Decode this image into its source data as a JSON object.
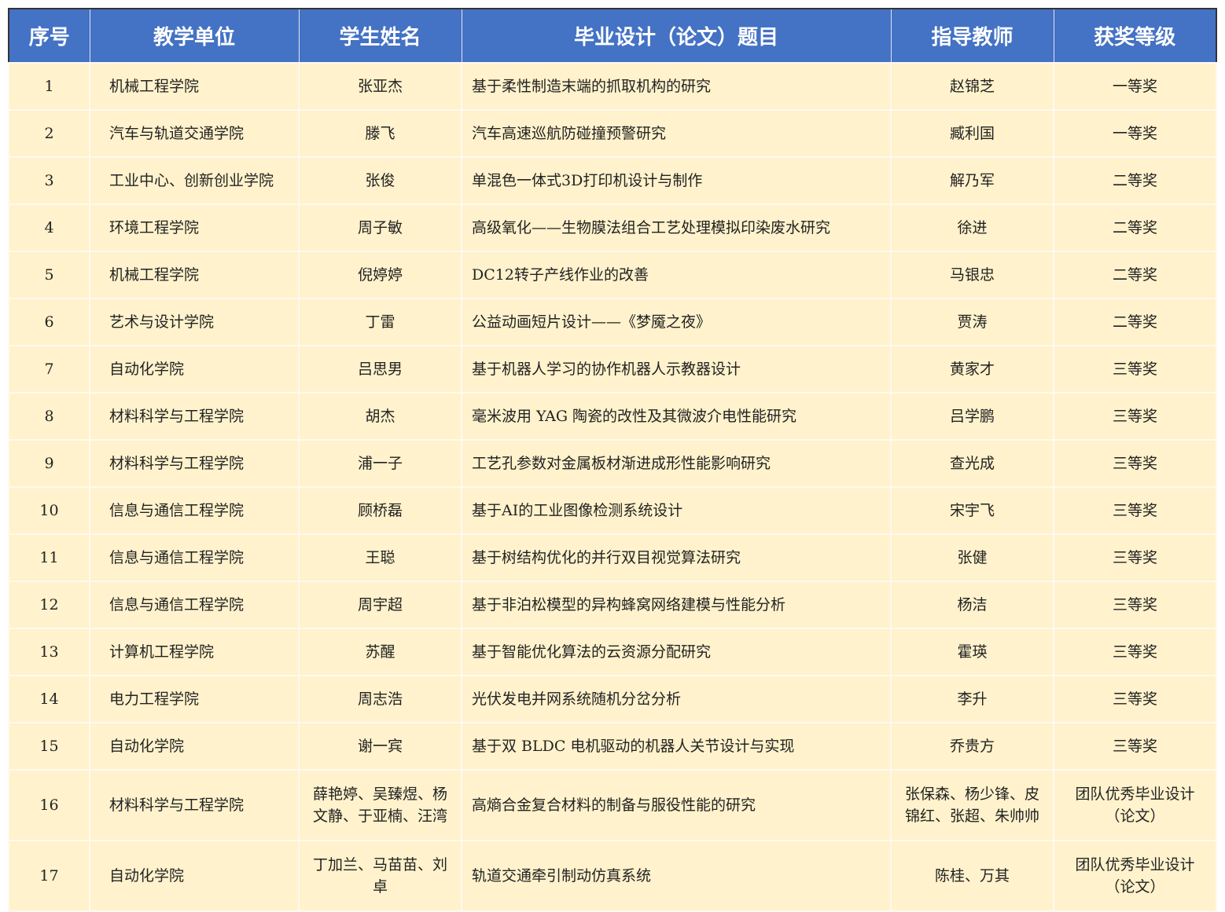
{
  "headers": [
    "序号",
    "教学单位",
    "学生姓名",
    "毕业设计（论文）题目",
    "指导教师",
    "获奖等级"
  ],
  "rows": [
    [
      "1",
      "机械工程学院",
      "张亚杰",
      "基于柔性制造末端的抓取机构的研究",
      "赵锦芝",
      "一等奖"
    ],
    [
      "2",
      "汽车与轨道交通学院",
      "滕飞",
      "汽车高速巡航防碰撞预警研究",
      "臧利国",
      "一等奖"
    ],
    [
      "3",
      "工业中心、创新创业学院",
      "张俊",
      "单混色一体式3D打印机设计与制作",
      "解乃军",
      "二等奖"
    ],
    [
      "4",
      "环境工程学院",
      "周子敏",
      "高级氧化——生物膜法组合工艺处理模拟印染废水研究",
      "徐进",
      "二等奖"
    ],
    [
      "5",
      "机械工程学院",
      "倪婷婷",
      "DC12转子产线作业的改善",
      "马银忠",
      "二等奖"
    ],
    [
      "6",
      "艺术与设计学院",
      "丁雷",
      "公益动画短片设计——《梦魇之夜》",
      "贾涛",
      "二等奖"
    ],
    [
      "7",
      "自动化学院",
      "吕思男",
      "基于机器人学习的协作机器人示教器设计",
      "黄家才",
      "三等奖"
    ],
    [
      "8",
      "材料科学与工程学院",
      "胡杰",
      "毫米波用 YAG 陶瓷的改性及其微波介电性能研究",
      "吕学鹏",
      "三等奖"
    ],
    [
      "9",
      "材料科学与工程学院",
      "浦一子",
      "工艺孔参数对金属板材渐进成形性能影响研究",
      "查光成",
      "三等奖"
    ],
    [
      "10",
      "信息与通信工程学院",
      "顾桥磊",
      "基于AI的工业图像检测系统设计",
      "宋宇飞",
      "三等奖"
    ],
    [
      "11",
      "信息与通信工程学院",
      "王聪",
      "基于树结构优化的并行双目视觉算法研究",
      "张健",
      "三等奖"
    ],
    [
      "12",
      "信息与通信工程学院",
      "周宇超",
      "基于非泊松模型的异构蜂窝网络建模与性能分析",
      "杨洁",
      "三等奖"
    ],
    [
      "13",
      "计算机工程学院",
      "苏醒",
      "基于智能优化算法的云资源分配研究",
      "霍瑛",
      "三等奖"
    ],
    [
      "14",
      "电力工程学院",
      "周志浩",
      "光伏发电并网系统随机分岔分析",
      "李升",
      "三等奖"
    ],
    [
      "15",
      "自动化学院",
      "谢一宾",
      "基于双 BLDC 电机驱动的机器人关节设计与实现",
      "乔贵方",
      "三等奖"
    ],
    [
      "16",
      "材料科学与工程学院",
      "薛艳婷、吴臻煜、杨文静、于亚楠、汪湾",
      "高熵合金复合材料的制备与服役性能的研究",
      "张保森、杨少锋、皮锦红、张超、朱帅帅",
      "团队优秀毕业设计（论文）"
    ],
    [
      "17",
      "自动化学院",
      "丁加兰、马苗苗、刘卓",
      "轨道交通牵引制动仿真系统",
      "陈桂、万其",
      "团队优秀毕业设计（论文）"
    ]
  ]
}
